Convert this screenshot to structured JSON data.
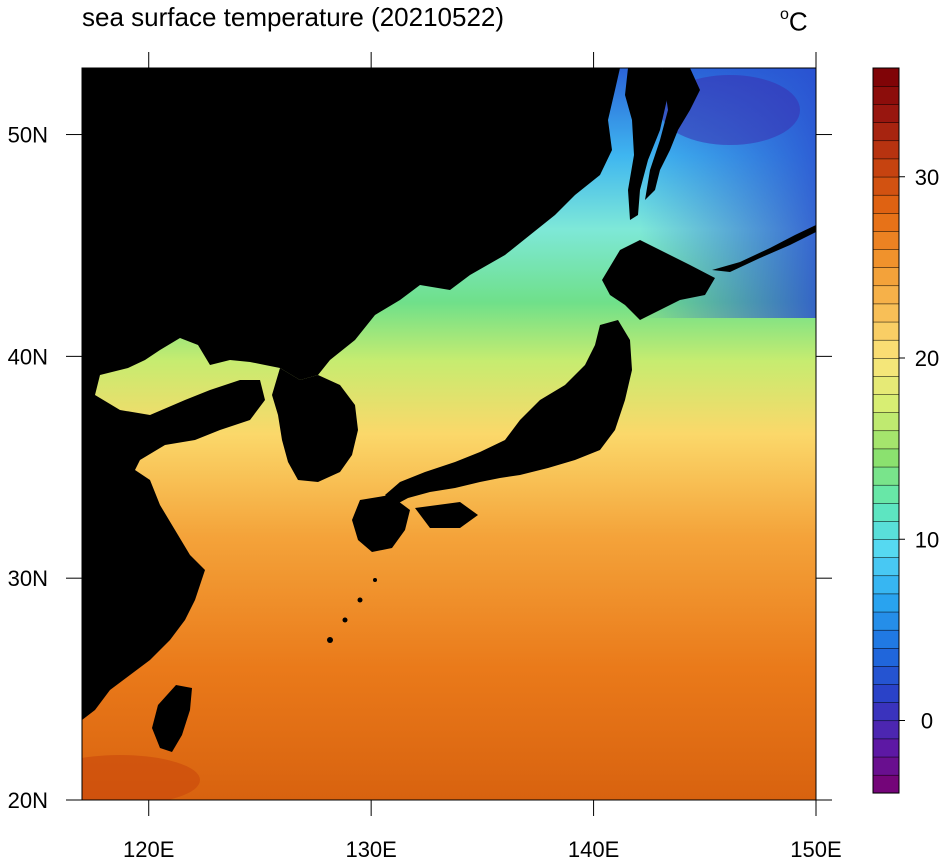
{
  "title": "sea surface temperature (20210522)",
  "unit": {
    "degree": "o",
    "letter": "C"
  },
  "map": {
    "lon_range": [
      117,
      150
    ],
    "lat_range": [
      20,
      53
    ],
    "lon_ticks": [
      "120E",
      "130E",
      "140E",
      "150E"
    ],
    "lon_tick_values": [
      120,
      130,
      140,
      150
    ],
    "lat_ticks": [
      "20N",
      "30N",
      "40N",
      "50N"
    ],
    "lat_tick_values": [
      20,
      30,
      40,
      50
    ],
    "land_color": "#000000"
  },
  "colorbar": {
    "min": -4,
    "max": 36,
    "step": 1,
    "labels": [
      "0",
      "10",
      "20",
      "30"
    ],
    "label_values": [
      0,
      10,
      20,
      30
    ],
    "color_stops": [
      "#7a006e",
      "#5b1aa8",
      "#2b3fc6",
      "#1e6fe0",
      "#2aa6f0",
      "#55d8f5",
      "#5fe8b5",
      "#8ee06a",
      "#d6ef72",
      "#fbe47a",
      "#f8bd55",
      "#f1952e",
      "#e56a13",
      "#c44010",
      "#9a1710",
      "#7a0005"
    ]
  }
}
